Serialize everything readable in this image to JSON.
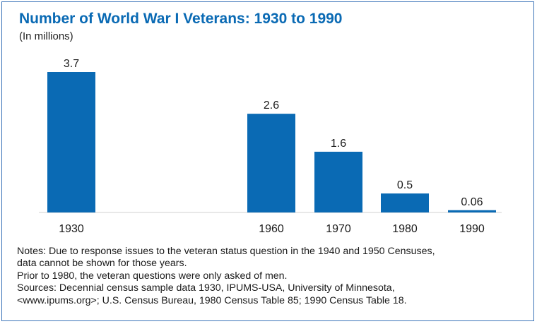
{
  "chart_data": {
    "type": "bar",
    "title": "Number of World War I Veterans: 1930 to 1990",
    "subtitle": "(In millions)",
    "categories": [
      "1930",
      "1960",
      "1970",
      "1980",
      "1990"
    ],
    "values": [
      3.7,
      2.6,
      1.6,
      0.5,
      0.06
    ],
    "value_labels": [
      "3.7",
      "2.6",
      "1.6",
      "0.5",
      "0.06"
    ],
    "xlabel": "",
    "ylabel": "",
    "ylim": [
      0,
      3.7
    ],
    "grid": false,
    "bar_color": "#0a6ab4"
  },
  "notes": {
    "line1": "Notes: Due to response issues to the veteran status question in the 1940 and 1950 Censuses,",
    "line2": "data cannot be shown for those years.",
    "line3": "Prior to 1980, the veteran questions were only asked of men.",
    "line4": "Sources: Decennial census sample data 1930, IPUMS-USA, University of Minnesota,",
    "line5": "<www.ipums.org>; U.S. Census Bureau, 1980 Census Table 85; 1990 Census Table 18."
  }
}
